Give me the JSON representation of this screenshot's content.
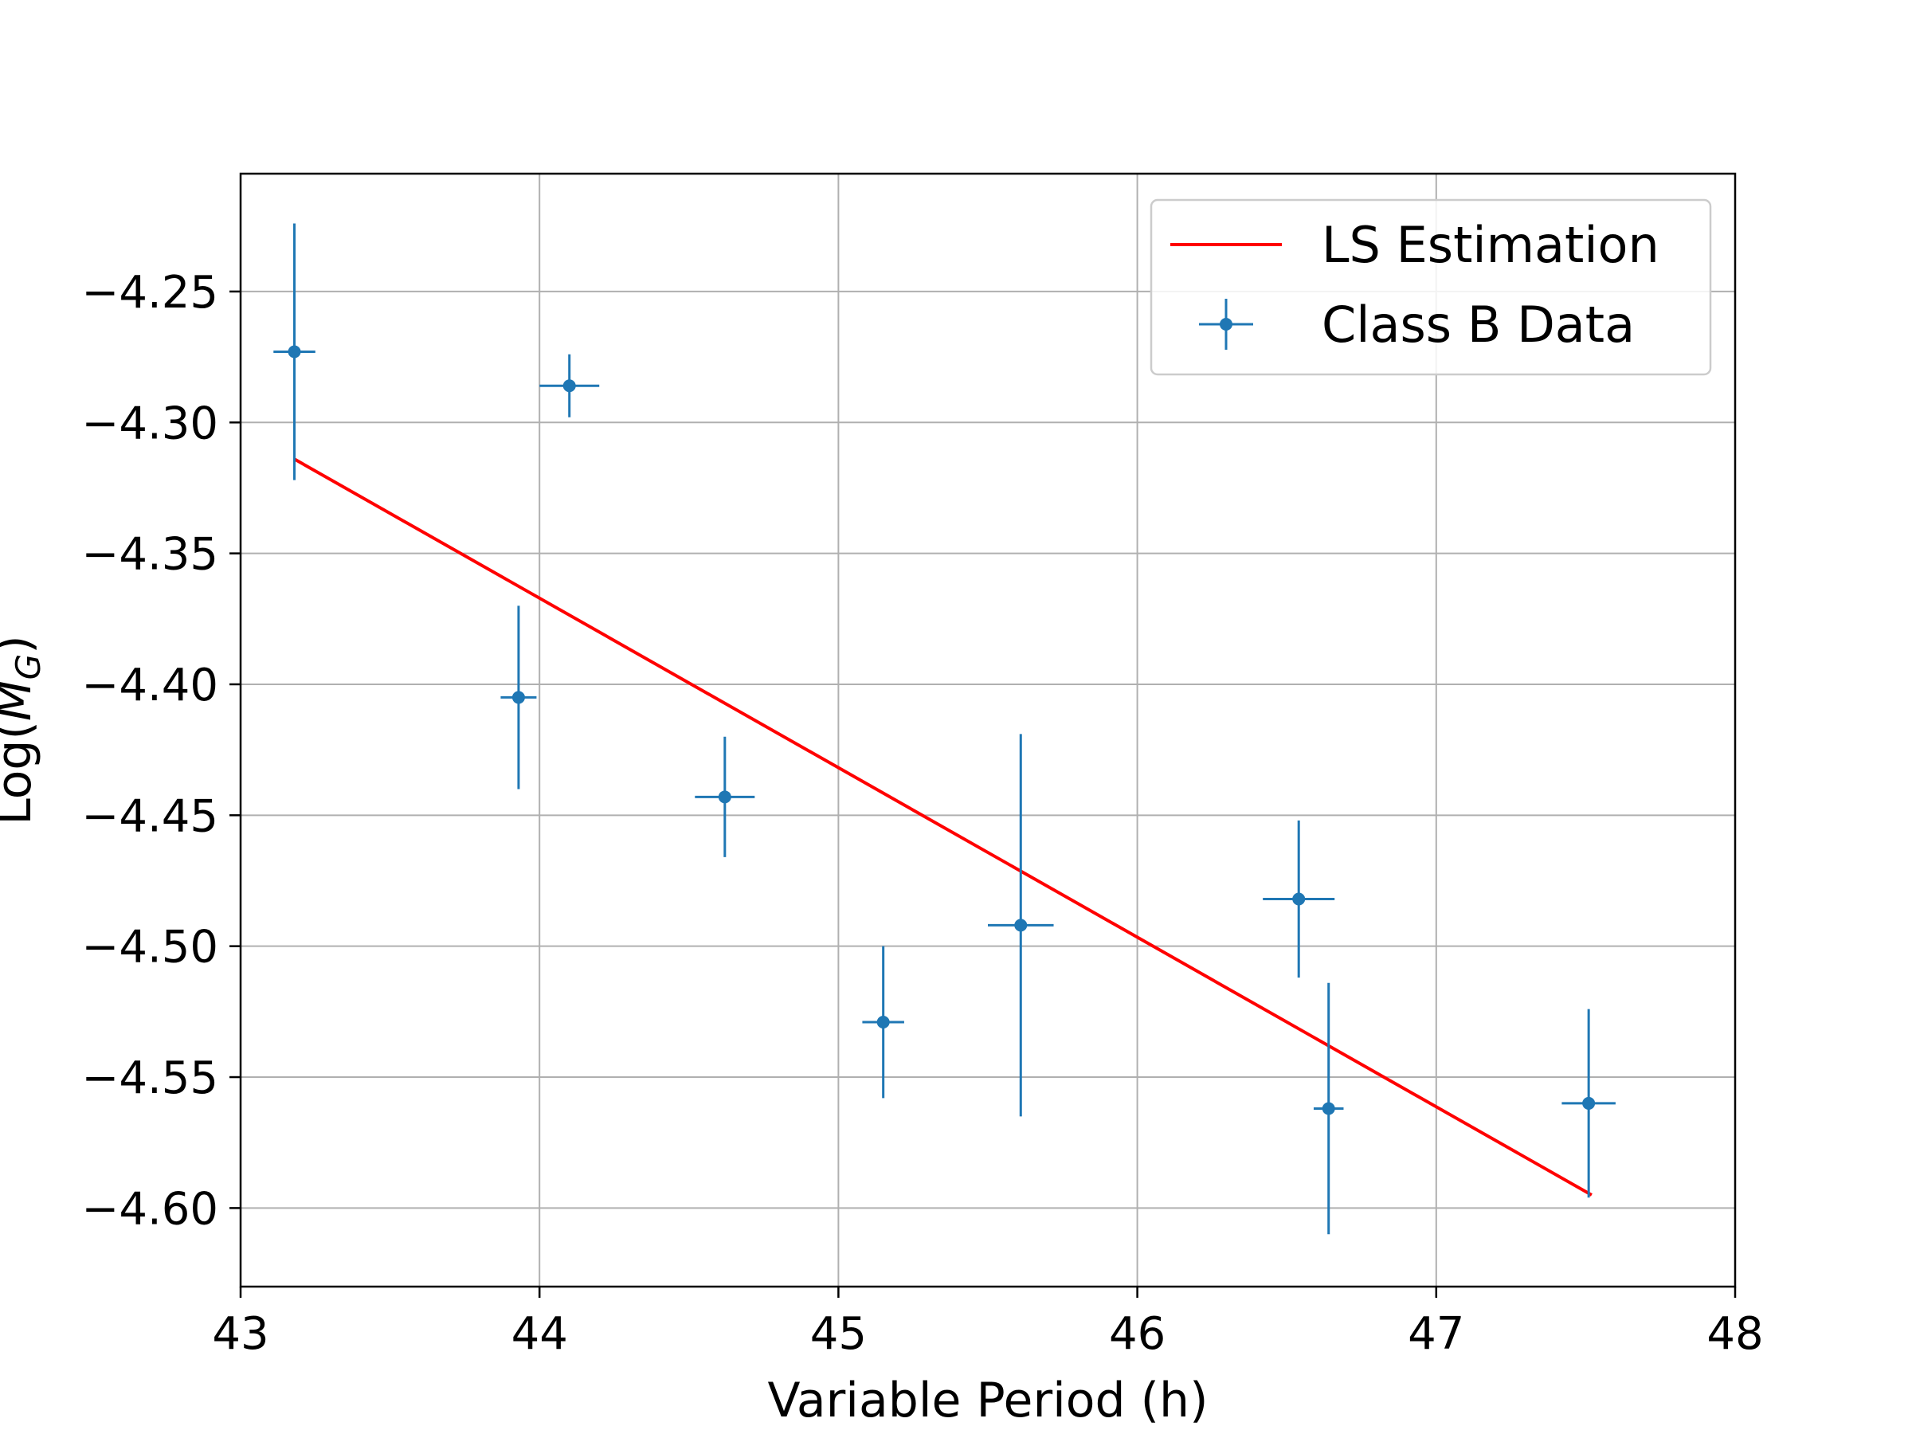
{
  "chart_data": {
    "type": "scatter",
    "title": "",
    "xlabel": "Variable Period (h)",
    "ylabel": "Log(M_G)",
    "xlim": [
      43,
      48
    ],
    "ylim": [
      -4.63,
      -4.205
    ],
    "xticks": [
      43,
      44,
      45,
      46,
      47,
      48
    ],
    "xtick_labels": [
      "43",
      "44",
      "45",
      "46",
      "47",
      "48"
    ],
    "yticks": [
      -4.25,
      -4.3,
      -4.35,
      -4.4,
      -4.45,
      -4.5,
      -4.55,
      -4.6
    ],
    "ytick_labels": [
      "−4.25",
      "−4.30",
      "−4.35",
      "−4.40",
      "−4.45",
      "−4.50",
      "−4.55",
      "−4.60"
    ],
    "grid": true,
    "legend_position": "top-right",
    "series": [
      {
        "name": "LS Estimation",
        "kind": "line",
        "color": "#ff0000",
        "points": [
          {
            "x": 43.18,
            "y": -4.314
          },
          {
            "x": 47.52,
            "y": -4.595
          }
        ]
      },
      {
        "name": "Class B Data",
        "kind": "errorbar",
        "color": "#1f77b4",
        "points": [
          {
            "x": 43.18,
            "y": -4.273,
            "xerr": 0.07,
            "yerr_low": 0.049,
            "yerr_high": 0.049
          },
          {
            "x": 43.93,
            "y": -4.405,
            "xerr": 0.06,
            "yerr_low": 0.035,
            "yerr_high": 0.035
          },
          {
            "x": 44.1,
            "y": -4.286,
            "xerr": 0.1,
            "yerr_low": 0.012,
            "yerr_high": 0.012
          },
          {
            "x": 44.62,
            "y": -4.443,
            "xerr": 0.1,
            "yerr_low": 0.023,
            "yerr_high": 0.023
          },
          {
            "x": 45.15,
            "y": -4.529,
            "xerr": 0.07,
            "yerr_low": 0.029,
            "yerr_high": 0.029
          },
          {
            "x": 45.61,
            "y": -4.492,
            "xerr": 0.11,
            "yerr_low": 0.073,
            "yerr_high": 0.073
          },
          {
            "x": 46.54,
            "y": -4.482,
            "xerr": 0.12,
            "yerr_low": 0.03,
            "yerr_high": 0.03
          },
          {
            "x": 46.64,
            "y": -4.562,
            "xerr": 0.05,
            "yerr_low": 0.048,
            "yerr_high": 0.048
          },
          {
            "x": 47.51,
            "y": -4.56,
            "xerr": 0.09,
            "yerr_low": 0.036,
            "yerr_high": 0.036
          }
        ]
      }
    ]
  }
}
